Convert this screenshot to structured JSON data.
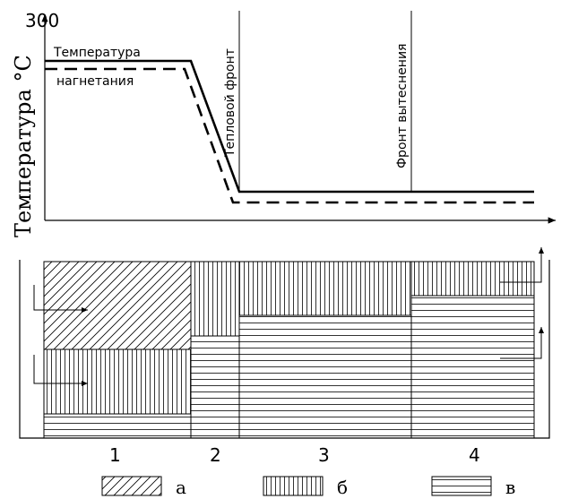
{
  "chart": {
    "y_tick_max": "300",
    "y_axis_label": "Температура °С",
    "legend_line1": "Температура",
    "legend_line2": "нагнетания",
    "front_thermal": "Тепловой фронт",
    "front_displacement": "Фронт вытеснения"
  },
  "zones": {
    "labels": [
      "1",
      "2",
      "3",
      "4"
    ]
  },
  "legend": {
    "items": [
      {
        "key": "a",
        "label": "а",
        "pattern": "diagonal-hatch"
      },
      {
        "key": "b",
        "label": "б",
        "pattern": "vertical-hatch"
      },
      {
        "key": "v",
        "label": "в",
        "pattern": "horizontal-hatch"
      }
    ]
  },
  "colors": {
    "ink": "#000000",
    "paper": "#ffffff"
  }
}
